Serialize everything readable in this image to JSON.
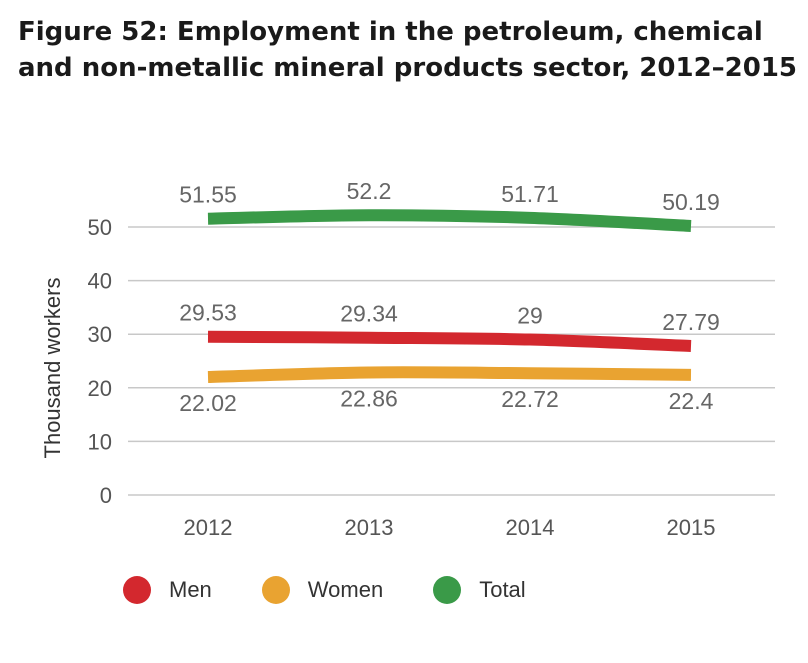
{
  "title_lines": [
    "Figure 52: Employment in the petroleum, chemical",
    "and non-metallic mineral products sector, 2012–2015"
  ],
  "chart_data": {
    "type": "line",
    "title": "Figure 52: Employment in the petroleum, chemical and non-metallic mineral products sector, 2012–2015",
    "xlabel": "",
    "ylabel": "Thousand workers",
    "x": [
      "2012",
      "2013",
      "2014",
      "2015"
    ],
    "ylim": [
      0,
      52
    ],
    "yticks": [
      0,
      10,
      20,
      30,
      40,
      50
    ],
    "grid": true,
    "legend_position": "bottom-left",
    "series": [
      {
        "name": "Men",
        "color": "#d3282e",
        "values": [
          29.53,
          29.34,
          29,
          27.79
        ],
        "labels": [
          "29.53",
          "29.34",
          "29",
          "27.79"
        ],
        "label_side": "above"
      },
      {
        "name": "Women",
        "color": "#e9a331",
        "values": [
          22.02,
          22.86,
          22.72,
          22.4
        ],
        "labels": [
          "22.02",
          "22.86",
          "22.72",
          "22.4"
        ],
        "label_side": "below"
      },
      {
        "name": "Total",
        "color": "#3a9a48",
        "values": [
          51.55,
          52.2,
          51.71,
          50.19
        ],
        "labels": [
          "51.55",
          "52.2",
          "51.71",
          "50.19"
        ],
        "label_side": "above"
      }
    ]
  }
}
